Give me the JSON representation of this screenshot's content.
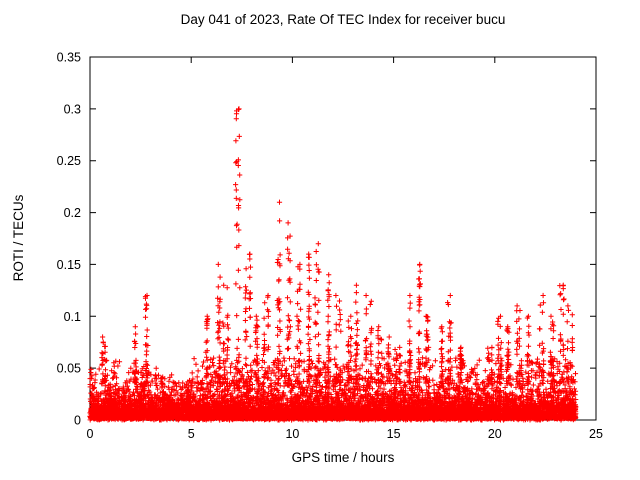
{
  "chart_data": {
    "type": "scatter",
    "title": "Day 041 of 2023, Rate Of TEC Index for receiver bucu",
    "xlabel": "GPS time / hours",
    "ylabel": "ROTI / TECUs",
    "xlim": [
      0,
      25
    ],
    "ylim": [
      0,
      0.35
    ],
    "x_ticks": [
      "0",
      "5",
      "10",
      "15",
      "20",
      "25"
    ],
    "y_ticks": [
      "0",
      "0.05",
      "0.1",
      "0.15",
      "0.2",
      "0.25",
      "0.3",
      "0.35"
    ],
    "grid": false,
    "legend": "none",
    "marker": "plus",
    "marker_color": "#ff0000",
    "axis_color": "#000000",
    "background_color": "#ffffff",
    "series_name": "ROTI",
    "data_span_hours": [
      0,
      24
    ],
    "baseline_band_max": 0.05,
    "bin_width_hours": 0.5,
    "bins_x_max": [
      [
        0.25,
        0.05
      ],
      [
        0.75,
        0.08
      ],
      [
        1.25,
        0.06
      ],
      [
        1.75,
        0.045
      ],
      [
        2.25,
        0.09
      ],
      [
        2.75,
        0.12
      ],
      [
        3.25,
        0.05
      ],
      [
        3.75,
        0.045
      ],
      [
        4.25,
        0.04
      ],
      [
        4.75,
        0.04
      ],
      [
        5.25,
        0.06
      ],
      [
        5.75,
        0.1
      ],
      [
        6.25,
        0.15
      ],
      [
        6.75,
        0.13
      ],
      [
        7.25,
        0.3
      ],
      [
        7.75,
        0.16
      ],
      [
        8.25,
        0.1
      ],
      [
        8.75,
        0.12
      ],
      [
        9.25,
        0.21
      ],
      [
        9.75,
        0.19
      ],
      [
        10.25,
        0.15
      ],
      [
        10.75,
        0.16
      ],
      [
        11.25,
        0.17
      ],
      [
        11.75,
        0.14
      ],
      [
        12.25,
        0.12
      ],
      [
        12.75,
        0.1
      ],
      [
        13.25,
        0.13
      ],
      [
        13.75,
        0.12
      ],
      [
        14.25,
        0.09
      ],
      [
        14.75,
        0.08
      ],
      [
        15.25,
        0.07
      ],
      [
        15.75,
        0.12
      ],
      [
        16.25,
        0.15
      ],
      [
        16.75,
        0.1
      ],
      [
        17.25,
        0.09
      ],
      [
        17.75,
        0.12
      ],
      [
        18.25,
        0.07
      ],
      [
        18.75,
        0.05
      ],
      [
        19.25,
        0.06
      ],
      [
        19.75,
        0.07
      ],
      [
        20.25,
        0.1
      ],
      [
        20.75,
        0.09
      ],
      [
        21.25,
        0.11
      ],
      [
        21.75,
        0.1
      ],
      [
        22.25,
        0.12
      ],
      [
        22.75,
        0.1
      ],
      [
        23.25,
        0.13
      ],
      [
        23.75,
        0.11
      ]
    ]
  }
}
